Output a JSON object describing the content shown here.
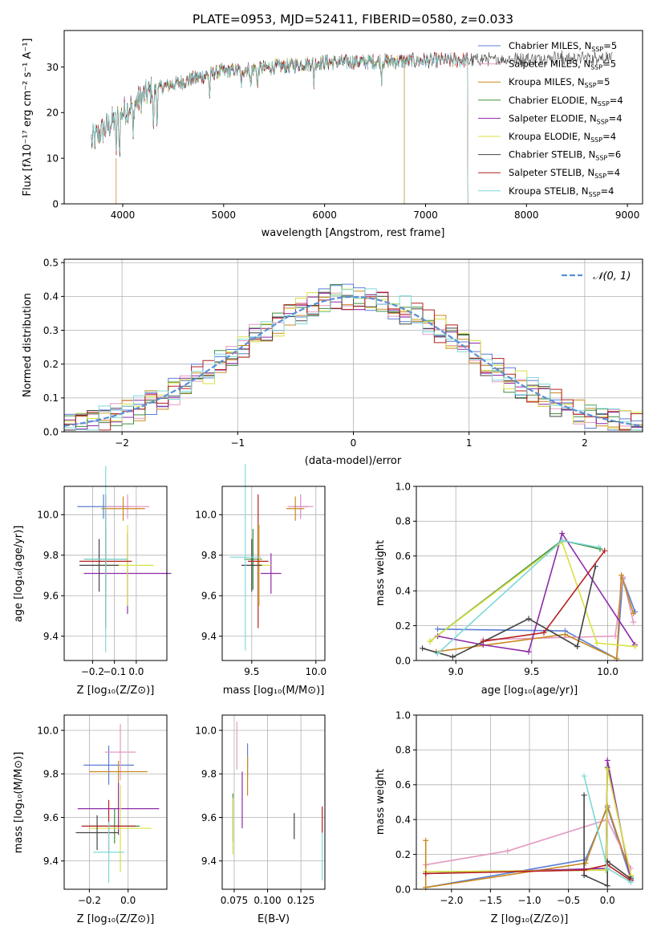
{
  "chart_data": [
    {
      "id": "spectrum",
      "type": "line",
      "title": "PLATE=0953, MJD=52411, FIBERID=0580, z=0.033",
      "xlabel": "wavelength [Angstrom, rest frame]",
      "ylabel": "Flux [fλ10⁻¹⁷ erg cm⁻² s⁻¹ A⁻¹]",
      "xlim": [
        3420,
        9150
      ],
      "ylim": [
        0,
        38
      ],
      "xticks": [
        "4000",
        "5000",
        "6000",
        "7000",
        "8000",
        "9000"
      ],
      "yticks": [
        "0",
        "10",
        "20",
        "30"
      ],
      "legend_position": "right",
      "series": [
        {
          "name": "Chabrier MILES, N",
          "sub": "SSP",
          "tail": "=5",
          "color": "#5b7fd6",
          "x_end": 7420
        },
        {
          "name": "Salpeter MILES, N",
          "sub": "SSP",
          "tail": "=5",
          "color": "#e49ac2",
          "x_end": 7420
        },
        {
          "name": "Kroupa MILES, N",
          "sub": "SSP",
          "tail": "=5",
          "color": "#c98920",
          "x_end": 7420
        },
        {
          "name": "Chabrier ELODIE, N",
          "sub": "SSP",
          "tail": "=4",
          "color": "#3f8f3f",
          "x_end": 6790
        },
        {
          "name": "Salpeter ELODIE, N",
          "sub": "SSP",
          "tail": "=4",
          "color": "#8e2ba8",
          "x_end": 6790
        },
        {
          "name": "Kroupa ELODIE, N",
          "sub": "SSP",
          "tail": "=4",
          "color": "#d9e040",
          "x_end": 6790
        },
        {
          "name": "Chabrier STELIB, N",
          "sub": "SSP",
          "tail": "=6",
          "color": "#444444",
          "x_end": 8850
        },
        {
          "name": "Salpeter STELIB, N",
          "sub": "SSP",
          "tail": "=4",
          "color": "#b52020",
          "x_end": 7420
        },
        {
          "name": "Kroupa STELIB, N",
          "sub": "SSP",
          "tail": "=4",
          "color": "#7fd8d8",
          "x_end": 7420
        }
      ]
    },
    {
      "id": "residuals",
      "type": "histogram",
      "xlabel": "(data-model)/error",
      "ylabel": "Normed distribution",
      "xlim": [
        -2.5,
        2.5
      ],
      "ylim": [
        0,
        0.51
      ],
      "xticks": [
        "−2",
        "−1",
        "0",
        "1",
        "2"
      ],
      "yticks": [
        "0.0",
        "0.1",
        "0.2",
        "0.3",
        "0.4",
        "0.5"
      ],
      "grid": true,
      "legend_label": "𝒩(0, 1)",
      "legend_position": "top-right",
      "curve_color": "#5b8fd6"
    },
    {
      "id": "age-vs-Z",
      "type": "scatter",
      "xlabel": "Z [log₁₀(Z/Z⊙)]",
      "ylabel": "age  [log₁₀(age/yr)]",
      "xlim": [
        -0.33,
        0.14
      ],
      "ylim": [
        9.28,
        10.14
      ],
      "xticks": [
        "−0.2",
        "−0.1",
        "0.0"
      ],
      "yticks": [
        "9.4",
        "9.6",
        "9.8",
        "10.0"
      ],
      "points": [
        {
          "series": 0,
          "x": -0.15,
          "y": 10.04,
          "xerr": 0.12,
          "yerr": 0.06
        },
        {
          "series": 1,
          "x": -0.04,
          "y": 10.04,
          "xerr": 0.1,
          "yerr": 0.06
        },
        {
          "series": 2,
          "x": -0.06,
          "y": 10.03,
          "xerr": 0.1,
          "yerr": 0.06
        },
        {
          "series": 3,
          "x": -0.14,
          "y": 9.78,
          "xerr": 0.1,
          "yerr": 0.15
        },
        {
          "series": 4,
          "x": -0.04,
          "y": 9.71,
          "xerr": 0.2,
          "yerr": 0.2
        },
        {
          "series": 5,
          "x": -0.04,
          "y": 9.75,
          "xerr": 0.12,
          "yerr": 0.2
        },
        {
          "series": 6,
          "x": -0.17,
          "y": 9.75,
          "xerr": 0.09,
          "yerr": 0.13
        },
        {
          "series": 7,
          "x": -0.14,
          "y": 9.77,
          "xerr": 0.12,
          "yerr": 0.33
        },
        {
          "series": 8,
          "x": -0.14,
          "y": 9.78,
          "xerr": 0.1,
          "yerr": 0.46
        }
      ]
    },
    {
      "id": "age-vs-mass",
      "type": "scatter",
      "xlabel": "mass [log₁₀(M/M⊙)]",
      "ylabel": "",
      "xlim": [
        9.27,
        10.07
      ],
      "ylim": [
        9.28,
        10.14
      ],
      "xticks": [
        "9.5",
        "10.0"
      ],
      "yticks": [
        "9.4",
        "9.6",
        "9.8",
        "10.0"
      ],
      "points": [
        {
          "series": 0,
          "x": 9.88,
          "y": 10.04,
          "xerr": 0.06,
          "yerr": 0.06
        },
        {
          "series": 1,
          "x": 9.88,
          "y": 10.04,
          "xerr": 0.1,
          "yerr": 0.06
        },
        {
          "series": 2,
          "x": 9.84,
          "y": 10.03,
          "xerr": 0.07,
          "yerr": 0.06
        },
        {
          "series": 3,
          "x": 9.51,
          "y": 9.78,
          "xerr": 0.07,
          "yerr": 0.15
        },
        {
          "series": 4,
          "x": 9.65,
          "y": 9.71,
          "xerr": 0.08,
          "yerr": 0.1
        },
        {
          "series": 5,
          "x": 9.56,
          "y": 9.75,
          "xerr": 0.09,
          "yerr": 0.2
        },
        {
          "series": 6,
          "x": 9.5,
          "y": 9.75,
          "xerr": 0.08,
          "yerr": 0.13
        },
        {
          "series": 7,
          "x": 9.55,
          "y": 9.77,
          "xerr": 0.08,
          "yerr": 0.33
        },
        {
          "series": 8,
          "x": 9.45,
          "y": 9.79,
          "xerr": 0.12,
          "yerr": 0.46
        }
      ]
    },
    {
      "id": "weight-vs-age",
      "type": "line",
      "xlabel": "age  [log₁₀(age/yr)]",
      "ylabel": "mass weight",
      "xlim": [
        8.74,
        10.23
      ],
      "ylim": [
        0,
        1.0
      ],
      "xticks": [
        "9.0",
        "9.5",
        "10.0"
      ],
      "yticks": [
        "0.0",
        "0.2",
        "0.4",
        "0.6",
        "0.8",
        "1.0"
      ],
      "grid": true,
      "lines": [
        {
          "series": 0,
          "points": [
            [
              8.88,
              0.18
            ],
            [
              9.72,
              0.17
            ],
            [
              10.06,
              0.01
            ],
            [
              10.1,
              0.47
            ],
            [
              10.18,
              0.28
            ]
          ]
        },
        {
          "series": 1,
          "points": [
            [
              9.18,
              0.12
            ],
            [
              10.05,
              0.14
            ],
            [
              10.1,
              0.48
            ],
            [
              10.17,
              0.22
            ]
          ]
        },
        {
          "series": 2,
          "points": [
            [
              8.87,
              0.05
            ],
            [
              9.72,
              0.15
            ],
            [
              10.06,
              0.01
            ],
            [
              10.09,
              0.49
            ],
            [
              10.17,
              0.27
            ]
          ]
        },
        {
          "series": 3,
          "points": [
            [
              8.83,
              0.11
            ],
            [
              9.7,
              0.69
            ],
            [
              9.95,
              0.64
            ]
          ]
        },
        {
          "series": 4,
          "points": [
            [
              8.88,
              0.14
            ],
            [
              9.18,
              0.09
            ],
            [
              9.48,
              0.05
            ],
            [
              9.7,
              0.73
            ],
            [
              10.18,
              0.09
            ]
          ]
        },
        {
          "series": 5,
          "points": [
            [
              8.83,
              0.11
            ],
            [
              9.7,
              0.68
            ],
            [
              9.93,
              0.1
            ],
            [
              10.18,
              0.08
            ]
          ]
        },
        {
          "series": 6,
          "points": [
            [
              8.78,
              0.07
            ],
            [
              8.98,
              0.02
            ],
            [
              9.48,
              0.24
            ],
            [
              9.8,
              0.08
            ],
            [
              9.92,
              0.54
            ]
          ]
        },
        {
          "series": 7,
          "points": [
            [
              9.18,
              0.11
            ],
            [
              9.58,
              0.16
            ],
            [
              9.98,
              0.63
            ]
          ]
        },
        {
          "series": 8,
          "points": [
            [
              8.88,
              0.04
            ],
            [
              9.7,
              0.69
            ],
            [
              9.94,
              0.65
            ]
          ]
        }
      ]
    },
    {
      "id": "mass-vs-Z",
      "type": "scatter",
      "xlabel": "Z [log₁₀(Z/Z⊙)]",
      "ylabel": "mass [log₁₀(M/M⊙)]",
      "xlim": [
        -0.33,
        0.2
      ],
      "ylim": [
        9.27,
        10.07
      ],
      "xticks": [
        "−0.2",
        "0.0"
      ],
      "yticks": [
        "9.4",
        "9.6",
        "9.8",
        "10.0"
      ],
      "points": [
        {
          "series": 0,
          "x": -0.1,
          "y": 9.84,
          "xerr": 0.13,
          "yerr": 0.09
        },
        {
          "series": 1,
          "x": -0.04,
          "y": 9.9,
          "xerr": 0.08,
          "yerr": 0.13
        },
        {
          "series": 2,
          "x": -0.05,
          "y": 9.81,
          "xerr": 0.15,
          "yerr": 0.05
        },
        {
          "series": 3,
          "x": -0.07,
          "y": 9.56,
          "xerr": 0.13,
          "yerr": 0.08
        },
        {
          "series": 4,
          "x": -0.05,
          "y": 9.64,
          "xerr": 0.21,
          "yerr": 0.12
        },
        {
          "series": 5,
          "x": -0.04,
          "y": 9.55,
          "xerr": 0.16,
          "yerr": 0.2
        },
        {
          "series": 6,
          "x": -0.16,
          "y": 9.53,
          "xerr": 0.11,
          "yerr": 0.08
        },
        {
          "series": 7,
          "x": -0.1,
          "y": 9.56,
          "xerr": 0.14,
          "yerr": 0.12
        },
        {
          "series": 8,
          "x": -0.1,
          "y": 9.44,
          "xerr": 0.08,
          "yerr": 0.14
        }
      ]
    },
    {
      "id": "mass-vs-ebv",
      "type": "scatter",
      "xlabel": "E(B-V)",
      "ylabel": "",
      "xlim": [
        0.066,
        0.143
      ],
      "ylim": [
        9.27,
        10.07
      ],
      "xticks": [
        "0.075",
        "0.100",
        "0.125"
      ],
      "yticks": [
        "9.4",
        "9.6",
        "9.8",
        "10.0"
      ],
      "points": [
        {
          "series": 0,
          "x": 0.085,
          "y": 9.86,
          "xerr": 0.0,
          "yerr": 0.08
        },
        {
          "series": 1,
          "x": 0.077,
          "y": 9.93,
          "xerr": 0.0,
          "yerr": 0.11
        },
        {
          "series": 2,
          "x": 0.085,
          "y": 9.79,
          "xerr": 0.0,
          "yerr": 0.09
        },
        {
          "series": 3,
          "x": 0.074,
          "y": 9.6,
          "xerr": 0.0,
          "yerr": 0.11
        },
        {
          "series": 4,
          "x": 0.081,
          "y": 9.68,
          "xerr": 0.0,
          "yerr": 0.13
        },
        {
          "series": 5,
          "x": 0.074,
          "y": 9.56,
          "xerr": 0.0,
          "yerr": 0.13
        },
        {
          "series": 6,
          "x": 0.12,
          "y": 9.56,
          "xerr": 0.0,
          "yerr": 0.06
        },
        {
          "series": 7,
          "x": 0.141,
          "y": 9.59,
          "xerr": 0.0,
          "yerr": 0.06
        },
        {
          "series": 8,
          "x": 0.141,
          "y": 9.42,
          "xerr": 0.0,
          "yerr": 0.11
        }
      ]
    },
    {
      "id": "weight-vs-Z",
      "type": "line",
      "xlabel": "Z [log₁₀(Z/Z⊙)]",
      "ylabel": "mass weight",
      "xlim": [
        -2.45,
        0.45
      ],
      "ylim": [
        0,
        1.0
      ],
      "xticks": [
        "−2.0",
        "−1.5",
        "−1.0",
        "−0.5",
        "0.0"
      ],
      "yticks": [
        "0.0",
        "0.2",
        "0.4",
        "0.6",
        "0.8",
        "1.0"
      ],
      "grid": true,
      "lines": [
        {
          "series": 0,
          "points": [
            [
              -2.33,
              0.01
            ],
            [
              -0.28,
              0.17
            ],
            [
              0.0,
              0.47
            ],
            [
              0.3,
              0.06
            ]
          ]
        },
        {
          "series": 1,
          "points": [
            [
              -2.33,
              0.14
            ],
            [
              -1.28,
              0.22
            ],
            [
              0.0,
              0.4
            ],
            [
              0.3,
              0.12
            ]
          ]
        },
        {
          "series": 2,
          "points": [
            [
              -2.33,
              0.28
            ],
            [
              -2.33,
              0.01
            ],
            [
              -0.28,
              0.15
            ],
            [
              0.0,
              0.48
            ],
            [
              0.3,
              0.08
            ]
          ]
        },
        {
          "series": 3,
          "points": [
            [
              -2.33,
              0.1
            ],
            [
              -0.02,
              0.11
            ],
            [
              0.0,
              0.7
            ],
            [
              0.3,
              0.07
            ]
          ]
        },
        {
          "series": 4,
          "points": [
            [
              -2.33,
              0.09
            ],
            [
              -0.02,
              0.12
            ],
            [
              0.0,
              0.74
            ],
            [
              0.3,
              0.05
            ]
          ]
        },
        {
          "series": 5,
          "points": [
            [
              -2.33,
              0.1
            ],
            [
              -0.02,
              0.11
            ],
            [
              0.0,
              0.69
            ],
            [
              0.3,
              0.08
            ]
          ]
        },
        {
          "series": 6,
          "points": [
            [
              -0.3,
              0.54
            ],
            [
              -0.3,
              0.08
            ],
            [
              0.0,
              0.02
            ],
            [
              0.0,
              0.16
            ],
            [
              0.3,
              0.06
            ]
          ]
        },
        {
          "series": 7,
          "points": [
            [
              -2.33,
              0.09
            ],
            [
              -0.3,
              0.11
            ],
            [
              0.0,
              0.14
            ],
            [
              0.3,
              0.05
            ]
          ]
        },
        {
          "series": 8,
          "points": [
            [
              -0.3,
              0.65
            ],
            [
              0.0,
              0.12
            ],
            [
              0.3,
              0.04
            ]
          ]
        }
      ]
    }
  ]
}
